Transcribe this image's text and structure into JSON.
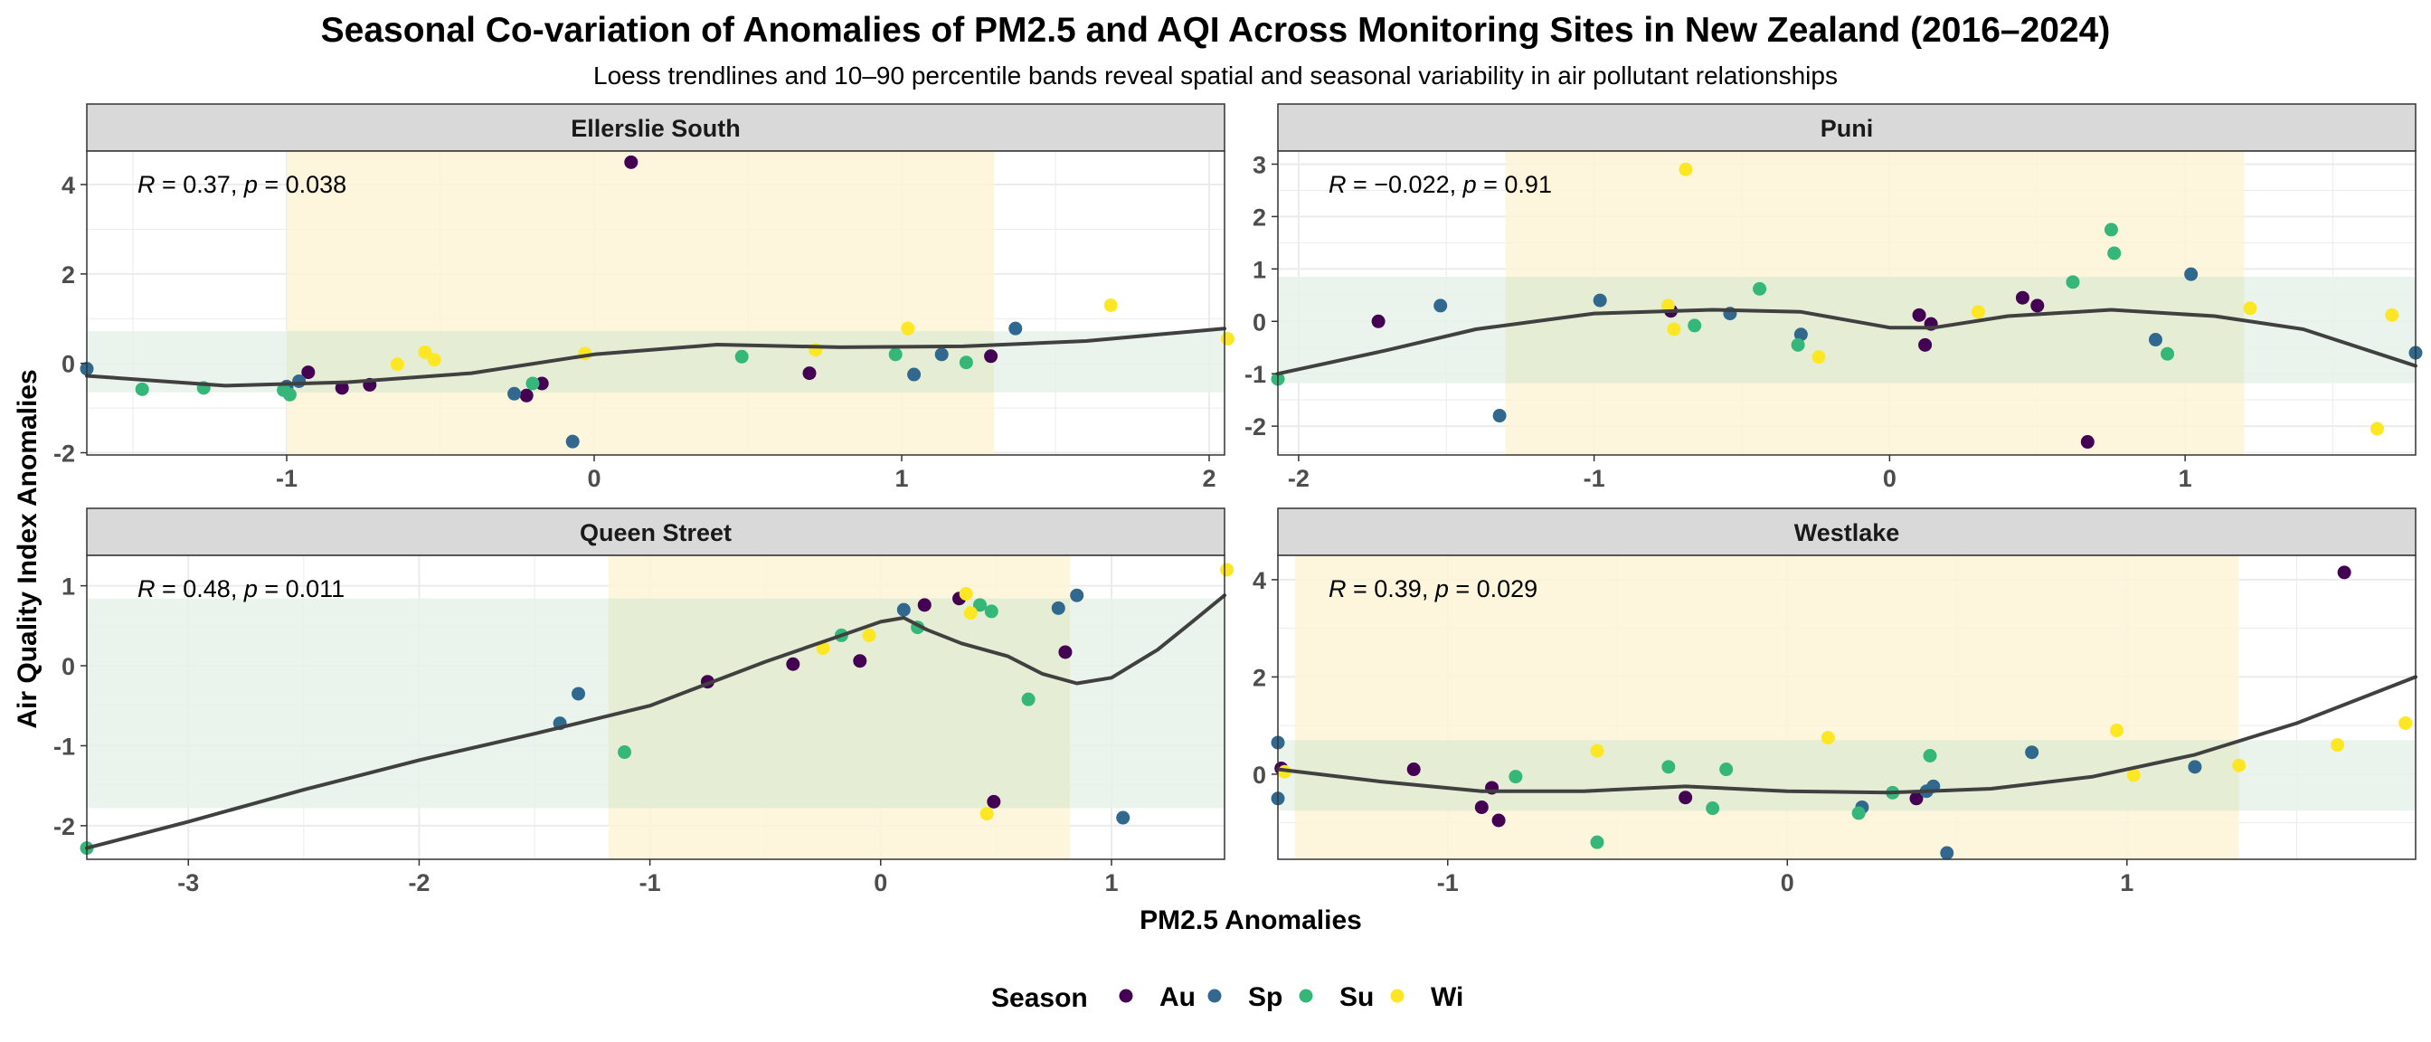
{
  "chart_data": {
    "type": "scatter",
    "title": "Seasonal Co-variation of Anomalies of PM2.5 and AQI Across Monitoring Sites in New Zealand (2016–2024)",
    "subtitle": "Loess trendlines and 10–90 percentile bands reveal spatial and seasonal variability in air pollutant relationships",
    "xlabel": "PM2.5 Anomalies",
    "ylabel": "Air Quality Index Anomalies",
    "legend": {
      "title": "Season",
      "position": "bottom",
      "entries": [
        {
          "key": "Au",
          "label": "Au",
          "color": "#440154"
        },
        {
          "key": "Sp",
          "label": "Sp",
          "color": "#31688E"
        },
        {
          "key": "Su",
          "label": "Su",
          "color": "#35B779"
        },
        {
          "key": "Wi",
          "label": "Wi",
          "color": "#FDE725"
        }
      ]
    },
    "colors": {
      "x_band": "#FDF3D6",
      "y_band": "#E6F2EA",
      "overlap_band": "#E4EDD3",
      "trend": "#404040",
      "strip": "#D9D9D9",
      "grid": "#EBEBEB"
    },
    "panels": [
      {
        "site": "Ellerslie South",
        "annotation": {
          "r_label": "R",
          "r_value": " = 0.37, ",
          "p_label": "p",
          "p_value": " = 0.038"
        },
        "xlim": [
          -1.65,
          2.05
        ],
        "ylim": [
          -2.05,
          4.75
        ],
        "xticks": [
          -1,
          0,
          1,
          2
        ],
        "xtick_labels": [
          "-1",
          "0",
          "1",
          "2"
        ],
        "yticks": [
          -2,
          0,
          2,
          4
        ],
        "ytick_labels": [
          "-2",
          "0",
          "2",
          "4"
        ],
        "x_band": [
          -1.0,
          1.3
        ],
        "y_band": [
          -0.65,
          0.72
        ],
        "trend": [
          [
            -1.65,
            -0.28
          ],
          [
            -1.2,
            -0.5
          ],
          [
            -0.8,
            -0.42
          ],
          [
            -0.4,
            -0.22
          ],
          [
            0.0,
            0.2
          ],
          [
            0.4,
            0.42
          ],
          [
            0.8,
            0.36
          ],
          [
            1.2,
            0.38
          ],
          [
            1.6,
            0.5
          ],
          [
            2.05,
            0.78
          ]
        ],
        "points": [
          {
            "x": 0.12,
            "y": 4.5,
            "season": "Au"
          },
          {
            "x": -0.93,
            "y": -0.2,
            "season": "Au"
          },
          {
            "x": -0.82,
            "y": -0.55,
            "season": "Au"
          },
          {
            "x": -0.73,
            "y": -0.48,
            "season": "Au"
          },
          {
            "x": -0.22,
            "y": -0.72,
            "season": "Au"
          },
          {
            "x": -0.17,
            "y": -0.45,
            "season": "Au"
          },
          {
            "x": 0.7,
            "y": -0.22,
            "season": "Au"
          },
          {
            "x": 1.29,
            "y": 0.16,
            "season": "Au"
          },
          {
            "x": -1.65,
            "y": -0.12,
            "season": "Sp"
          },
          {
            "x": -1.0,
            "y": -0.52,
            "season": "Sp"
          },
          {
            "x": -0.96,
            "y": -0.4,
            "season": "Sp"
          },
          {
            "x": -0.26,
            "y": -0.68,
            "season": "Sp"
          },
          {
            "x": -0.07,
            "y": -1.75,
            "season": "Sp"
          },
          {
            "x": 1.04,
            "y": -0.25,
            "season": "Sp"
          },
          {
            "x": 1.13,
            "y": 0.2,
            "season": "Sp"
          },
          {
            "x": 1.37,
            "y": 0.78,
            "season": "Sp"
          },
          {
            "x": -1.47,
            "y": -0.58,
            "season": "Su"
          },
          {
            "x": -1.27,
            "y": -0.55,
            "season": "Su"
          },
          {
            "x": -1.01,
            "y": -0.6,
            "season": "Su"
          },
          {
            "x": -0.99,
            "y": -0.7,
            "season": "Su"
          },
          {
            "x": -0.2,
            "y": -0.45,
            "season": "Su"
          },
          {
            "x": 0.48,
            "y": 0.15,
            "season": "Su"
          },
          {
            "x": 0.98,
            "y": 0.2,
            "season": "Su"
          },
          {
            "x": 1.21,
            "y": 0.02,
            "season": "Su"
          },
          {
            "x": -0.64,
            "y": -0.02,
            "season": "Wi"
          },
          {
            "x": -0.55,
            "y": 0.25,
            "season": "Wi"
          },
          {
            "x": -0.52,
            "y": 0.08,
            "season": "Wi"
          },
          {
            "x": -0.03,
            "y": 0.22,
            "season": "Wi"
          },
          {
            "x": 0.72,
            "y": 0.3,
            "season": "Wi"
          },
          {
            "x": 1.02,
            "y": 0.78,
            "season": "Wi"
          },
          {
            "x": 1.68,
            "y": 1.3,
            "season": "Wi"
          },
          {
            "x": 2.06,
            "y": 0.55,
            "season": "Wi"
          }
        ]
      },
      {
        "site": "Puni",
        "annotation": {
          "r_label": "R",
          "r_value": " = −0.022, ",
          "p_label": "p",
          "p_value": " = 0.91"
        },
        "xlim": [
          -2.07,
          1.78
        ],
        "ylim": [
          -2.55,
          3.25
        ],
        "xticks": [
          -2,
          -1,
          0,
          1
        ],
        "xtick_labels": [
          "-2",
          "-1",
          "0",
          "1"
        ],
        "yticks": [
          -2,
          -1,
          0,
          1,
          2,
          3
        ],
        "ytick_labels": [
          "-2",
          "-1",
          "0",
          "1",
          "2",
          "3"
        ],
        "x_band": [
          -1.3,
          1.2
        ],
        "y_band": [
          -1.18,
          0.85
        ],
        "trend": [
          [
            -2.07,
            -1.0
          ],
          [
            -1.7,
            -0.55
          ],
          [
            -1.4,
            -0.15
          ],
          [
            -1.0,
            0.15
          ],
          [
            -0.6,
            0.22
          ],
          [
            -0.3,
            0.18
          ],
          [
            0.0,
            -0.12
          ],
          [
            0.15,
            -0.12
          ],
          [
            0.4,
            0.1
          ],
          [
            0.75,
            0.22
          ],
          [
            1.1,
            0.1
          ],
          [
            1.4,
            -0.15
          ],
          [
            1.78,
            -0.85
          ]
        ],
        "points": [
          {
            "x": -1.73,
            "y": 0.0,
            "season": "Au"
          },
          {
            "x": -0.74,
            "y": 0.2,
            "season": "Au"
          },
          {
            "x": 0.1,
            "y": 0.12,
            "season": "Au"
          },
          {
            "x": 0.12,
            "y": -0.45,
            "season": "Au"
          },
          {
            "x": 0.14,
            "y": -0.05,
            "season": "Au"
          },
          {
            "x": 0.45,
            "y": 0.45,
            "season": "Au"
          },
          {
            "x": 0.5,
            "y": 0.3,
            "season": "Au"
          },
          {
            "x": 0.67,
            "y": -2.3,
            "season": "Au"
          },
          {
            "x": -1.52,
            "y": 0.3,
            "season": "Sp"
          },
          {
            "x": -1.32,
            "y": -1.8,
            "season": "Sp"
          },
          {
            "x": -0.98,
            "y": 0.4,
            "season": "Sp"
          },
          {
            "x": -0.54,
            "y": 0.15,
            "season": "Sp"
          },
          {
            "x": -0.3,
            "y": -0.25,
            "season": "Sp"
          },
          {
            "x": 0.9,
            "y": -0.35,
            "season": "Sp"
          },
          {
            "x": 1.02,
            "y": 0.9,
            "season": "Sp"
          },
          {
            "x": 1.78,
            "y": -0.6,
            "season": "Sp"
          },
          {
            "x": -2.07,
            "y": -1.1,
            "season": "Su"
          },
          {
            "x": -0.66,
            "y": -0.08,
            "season": "Su"
          },
          {
            "x": -0.44,
            "y": 0.62,
            "season": "Su"
          },
          {
            "x": -0.31,
            "y": -0.45,
            "season": "Su"
          },
          {
            "x": 0.62,
            "y": 0.75,
            "season": "Su"
          },
          {
            "x": 0.75,
            "y": 1.75,
            "season": "Su"
          },
          {
            "x": 0.76,
            "y": 1.3,
            "season": "Su"
          },
          {
            "x": 0.94,
            "y": -0.62,
            "season": "Su"
          },
          {
            "x": -0.69,
            "y": 2.9,
            "season": "Wi"
          },
          {
            "x": -0.75,
            "y": 0.3,
            "season": "Wi"
          },
          {
            "x": -0.73,
            "y": -0.15,
            "season": "Wi"
          },
          {
            "x": -0.24,
            "y": -0.68,
            "season": "Wi"
          },
          {
            "x": 0.3,
            "y": 0.18,
            "season": "Wi"
          },
          {
            "x": 1.22,
            "y": 0.25,
            "season": "Wi"
          },
          {
            "x": 1.65,
            "y": -2.05,
            "season": "Wi"
          },
          {
            "x": 1.7,
            "y": 0.12,
            "season": "Wi"
          }
        ]
      },
      {
        "site": "Queen Street",
        "annotation": {
          "r_label": "R",
          "r_value": " = 0.48, ",
          "p_label": "p",
          "p_value": " = 0.011"
        },
        "xlim": [
          -3.44,
          1.49
        ],
        "ylim": [
          -2.42,
          1.38
        ],
        "xticks": [
          -3,
          -2,
          -1,
          0,
          1
        ],
        "xtick_labels": [
          "-3",
          "-2",
          "-1",
          "0",
          "1"
        ],
        "yticks": [
          -2,
          -1,
          0,
          1
        ],
        "ytick_labels": [
          "-2",
          "-1",
          "0",
          "1"
        ],
        "x_band": [
          -1.18,
          0.82
        ],
        "y_band": [
          -1.78,
          0.84
        ],
        "trend": [
          [
            -3.44,
            -2.28
          ],
          [
            -3.0,
            -1.95
          ],
          [
            -2.5,
            -1.55
          ],
          [
            -2.0,
            -1.18
          ],
          [
            -1.5,
            -0.85
          ],
          [
            -1.0,
            -0.5
          ],
          [
            -0.5,
            0.05
          ],
          [
            -0.2,
            0.35
          ],
          [
            0.0,
            0.55
          ],
          [
            0.1,
            0.6
          ],
          [
            0.2,
            0.45
          ],
          [
            0.35,
            0.28
          ],
          [
            0.55,
            0.12
          ],
          [
            0.7,
            -0.1
          ],
          [
            0.85,
            -0.22
          ],
          [
            1.0,
            -0.15
          ],
          [
            1.2,
            0.2
          ],
          [
            1.35,
            0.55
          ],
          [
            1.49,
            0.88
          ]
        ],
        "points": [
          {
            "x": -0.75,
            "y": -0.2,
            "season": "Au"
          },
          {
            "x": -0.38,
            "y": 0.02,
            "season": "Au"
          },
          {
            "x": -0.09,
            "y": 0.06,
            "season": "Au"
          },
          {
            "x": 0.19,
            "y": 0.76,
            "season": "Au"
          },
          {
            "x": 0.34,
            "y": 0.84,
            "season": "Au"
          },
          {
            "x": 0.49,
            "y": -1.7,
            "season": "Au"
          },
          {
            "x": 0.8,
            "y": 0.17,
            "season": "Au"
          },
          {
            "x": -1.39,
            "y": -0.72,
            "season": "Sp"
          },
          {
            "x": -1.31,
            "y": -0.35,
            "season": "Sp"
          },
          {
            "x": 0.1,
            "y": 0.7,
            "season": "Sp"
          },
          {
            "x": 0.77,
            "y": 0.72,
            "season": "Sp"
          },
          {
            "x": 0.85,
            "y": 0.88,
            "season": "Sp"
          },
          {
            "x": 1.05,
            "y": -1.9,
            "season": "Sp"
          },
          {
            "x": -3.44,
            "y": -2.28,
            "season": "Su"
          },
          {
            "x": -1.11,
            "y": -1.08,
            "season": "Su"
          },
          {
            "x": -0.17,
            "y": 0.38,
            "season": "Su"
          },
          {
            "x": 0.16,
            "y": 0.48,
            "season": "Su"
          },
          {
            "x": 0.43,
            "y": 0.76,
            "season": "Su"
          },
          {
            "x": 0.48,
            "y": 0.68,
            "season": "Su"
          },
          {
            "x": 0.64,
            "y": -0.42,
            "season": "Su"
          },
          {
            "x": -0.25,
            "y": 0.22,
            "season": "Wi"
          },
          {
            "x": -0.05,
            "y": 0.38,
            "season": "Wi"
          },
          {
            "x": 0.37,
            "y": 0.9,
            "season": "Wi"
          },
          {
            "x": 0.39,
            "y": 0.66,
            "season": "Wi"
          },
          {
            "x": 0.46,
            "y": -1.85,
            "season": "Wi"
          },
          {
            "x": 1.5,
            "y": 1.2,
            "season": "Wi"
          }
        ]
      },
      {
        "site": "Westlake",
        "annotation": {
          "r_label": "R",
          "r_value": " = 0.39, ",
          "p_label": "p",
          "p_value": " = 0.029"
        },
        "xlim": [
          -1.5,
          1.85
        ],
        "ylim": [
          -1.75,
          4.5
        ],
        "xticks": [
          -1,
          0,
          1
        ],
        "xtick_labels": [
          "-1",
          "0",
          "1"
        ],
        "yticks": [
          0,
          2,
          4
        ],
        "ytick_labels": [
          "0",
          "2",
          "4"
        ],
        "x_band": [
          -1.45,
          1.33
        ],
        "y_band": [
          -0.75,
          0.7
        ],
        "trend": [
          [
            -1.5,
            0.1
          ],
          [
            -1.2,
            -0.15
          ],
          [
            -0.9,
            -0.35
          ],
          [
            -0.6,
            -0.35
          ],
          [
            -0.3,
            -0.25
          ],
          [
            0.0,
            -0.35
          ],
          [
            0.3,
            -0.38
          ],
          [
            0.6,
            -0.3
          ],
          [
            0.9,
            -0.05
          ],
          [
            1.2,
            0.4
          ],
          [
            1.5,
            1.05
          ],
          [
            1.85,
            2.0
          ]
        ],
        "points": [
          {
            "x": -1.49,
            "y": 0.12,
            "season": "Au"
          },
          {
            "x": -1.1,
            "y": 0.1,
            "season": "Au"
          },
          {
            "x": -0.9,
            "y": -0.68,
            "season": "Au"
          },
          {
            "x": -0.87,
            "y": -0.28,
            "season": "Au"
          },
          {
            "x": -0.85,
            "y": -0.95,
            "season": "Au"
          },
          {
            "x": -0.3,
            "y": -0.48,
            "season": "Au"
          },
          {
            "x": 0.38,
            "y": -0.5,
            "season": "Au"
          },
          {
            "x": 1.64,
            "y": 4.15,
            "season": "Au"
          },
          {
            "x": -1.5,
            "y": 0.65,
            "season": "Sp"
          },
          {
            "x": -1.5,
            "y": -0.5,
            "season": "Sp"
          },
          {
            "x": 0.22,
            "y": -0.68,
            "season": "Sp"
          },
          {
            "x": 0.41,
            "y": -0.35,
            "season": "Sp"
          },
          {
            "x": 0.43,
            "y": -0.25,
            "season": "Sp"
          },
          {
            "x": 0.47,
            "y": -1.62,
            "season": "Sp"
          },
          {
            "x": 0.72,
            "y": 0.45,
            "season": "Sp"
          },
          {
            "x": 1.2,
            "y": 0.15,
            "season": "Sp"
          },
          {
            "x": -0.8,
            "y": -0.05,
            "season": "Su"
          },
          {
            "x": -0.56,
            "y": -1.4,
            "season": "Su"
          },
          {
            "x": -0.35,
            "y": 0.15,
            "season": "Su"
          },
          {
            "x": -0.22,
            "y": -0.7,
            "season": "Su"
          },
          {
            "x": -0.18,
            "y": 0.1,
            "season": "Su"
          },
          {
            "x": 0.21,
            "y": -0.8,
            "season": "Su"
          },
          {
            "x": 0.31,
            "y": -0.38,
            "season": "Su"
          },
          {
            "x": 0.42,
            "y": 0.38,
            "season": "Su"
          },
          {
            "x": -1.48,
            "y": 0.05,
            "season": "Wi"
          },
          {
            "x": -0.56,
            "y": 0.48,
            "season": "Wi"
          },
          {
            "x": 0.12,
            "y": 0.75,
            "season": "Wi"
          },
          {
            "x": 0.97,
            "y": 0.9,
            "season": "Wi"
          },
          {
            "x": 1.02,
            "y": -0.02,
            "season": "Wi"
          },
          {
            "x": 1.33,
            "y": 0.18,
            "season": "Wi"
          },
          {
            "x": 1.62,
            "y": 0.6,
            "season": "Wi"
          },
          {
            "x": 1.82,
            "y": 1.05,
            "season": "Wi"
          }
        ]
      }
    ]
  }
}
